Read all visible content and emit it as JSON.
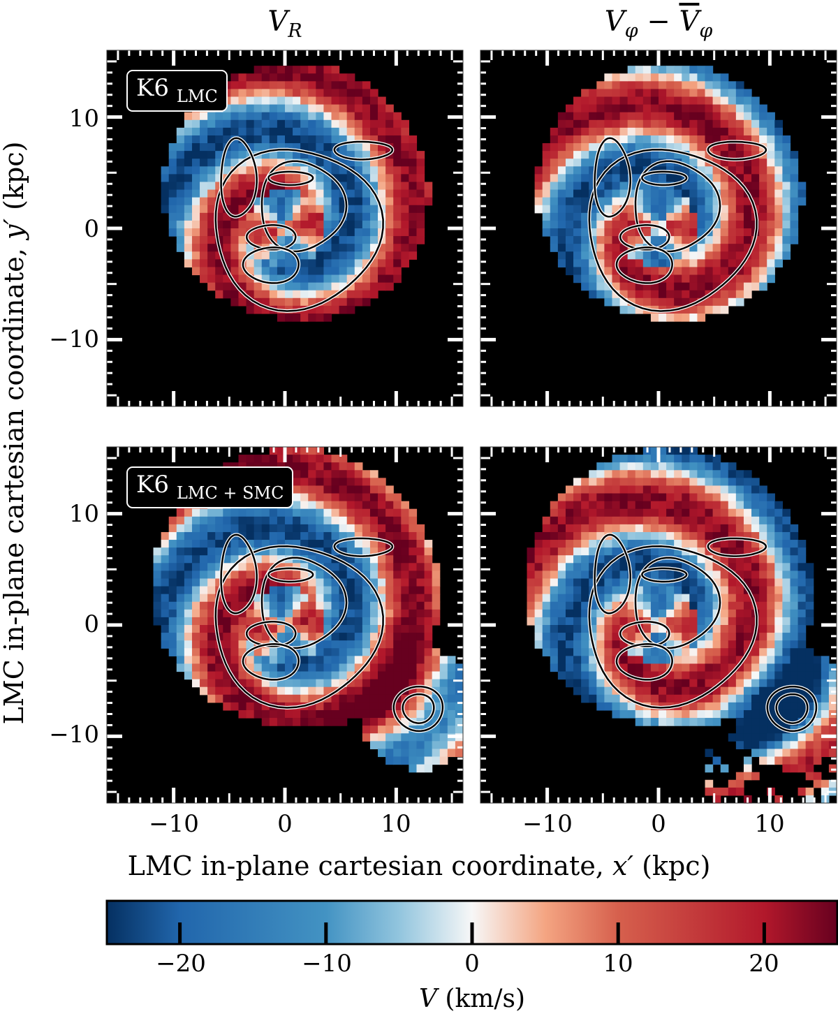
{
  "chart_data": {
    "type": "heatmap",
    "figure": "LMC in-plane velocity maps (2x2 panels)",
    "column_titles": {
      "left": "V_R",
      "right": "V_φ − V̄_φ"
    },
    "xlabel": "LMC in-plane cartesian coordinate, x′ (kpc)",
    "ylabel": "LMC in-plane cartesian coordinate, y′ (kpc)",
    "xlim": [
      -16,
      16
    ],
    "ylim": [
      -16,
      16
    ],
    "xticks": [
      -10,
      0,
      10
    ],
    "yticks": [
      -10,
      0,
      10
    ],
    "xtick_labels": [
      "−10",
      "0",
      "10"
    ],
    "ytick_labels": [
      "10",
      "0",
      "−10"
    ],
    "colorbar": {
      "label": "V (km/s)",
      "range": [
        -25,
        25
      ],
      "ticks": [
        -20,
        -10,
        0,
        10,
        20
      ],
      "tick_labels": [
        "−20",
        "−10",
        "0",
        "10",
        "20"
      ],
      "colormap": "RdBu_r"
    },
    "panels": [
      {
        "id": "top-left",
        "quantity": "V_R",
        "label_main": "K6",
        "label_sub": "LMC",
        "has_smc": false
      },
      {
        "id": "top-right",
        "quantity": "V_phi_residual",
        "label_main": "",
        "label_sub": "",
        "has_smc": false
      },
      {
        "id": "bottom-left",
        "quantity": "V_R",
        "label_main": "K6",
        "label_sub": "LMC + SMC",
        "has_smc": true,
        "smc_center": [
          12,
          -7.5
        ]
      },
      {
        "id": "bottom-right",
        "quantity": "V_phi_residual",
        "label_main": "",
        "label_sub": "",
        "has_smc": true,
        "smc_center": [
          12,
          -7.5
        ]
      }
    ]
  },
  "labels": {
    "title_left_main": "V",
    "title_left_sub": "R",
    "title_right_main": "V",
    "title_right_sub": "φ",
    "title_right_minus": " − ",
    "title_right_bar": "V",
    "title_right_sub2": "φ",
    "ylabel_text": "LMC in-plane cartesian coordinate, ",
    "ylabel_var": "y′",
    "ylabel_unit": " (kpc)",
    "xlabel_text": "LMC in-plane cartesian coordinate, ",
    "xlabel_var": "x′",
    "xlabel_unit": " (kpc)",
    "cbar_var": "V",
    "cbar_unit": " (km/s)",
    "panel_tl_main": "K6",
    "panel_tl_sub": "LMC",
    "panel_bl_main": "K6",
    "panel_bl_sub": "LMC + SMC"
  },
  "colors": {
    "background": "#000000",
    "red_max": "#67001f",
    "blue_max": "#053061",
    "white_mid": "#f7f7f7"
  }
}
